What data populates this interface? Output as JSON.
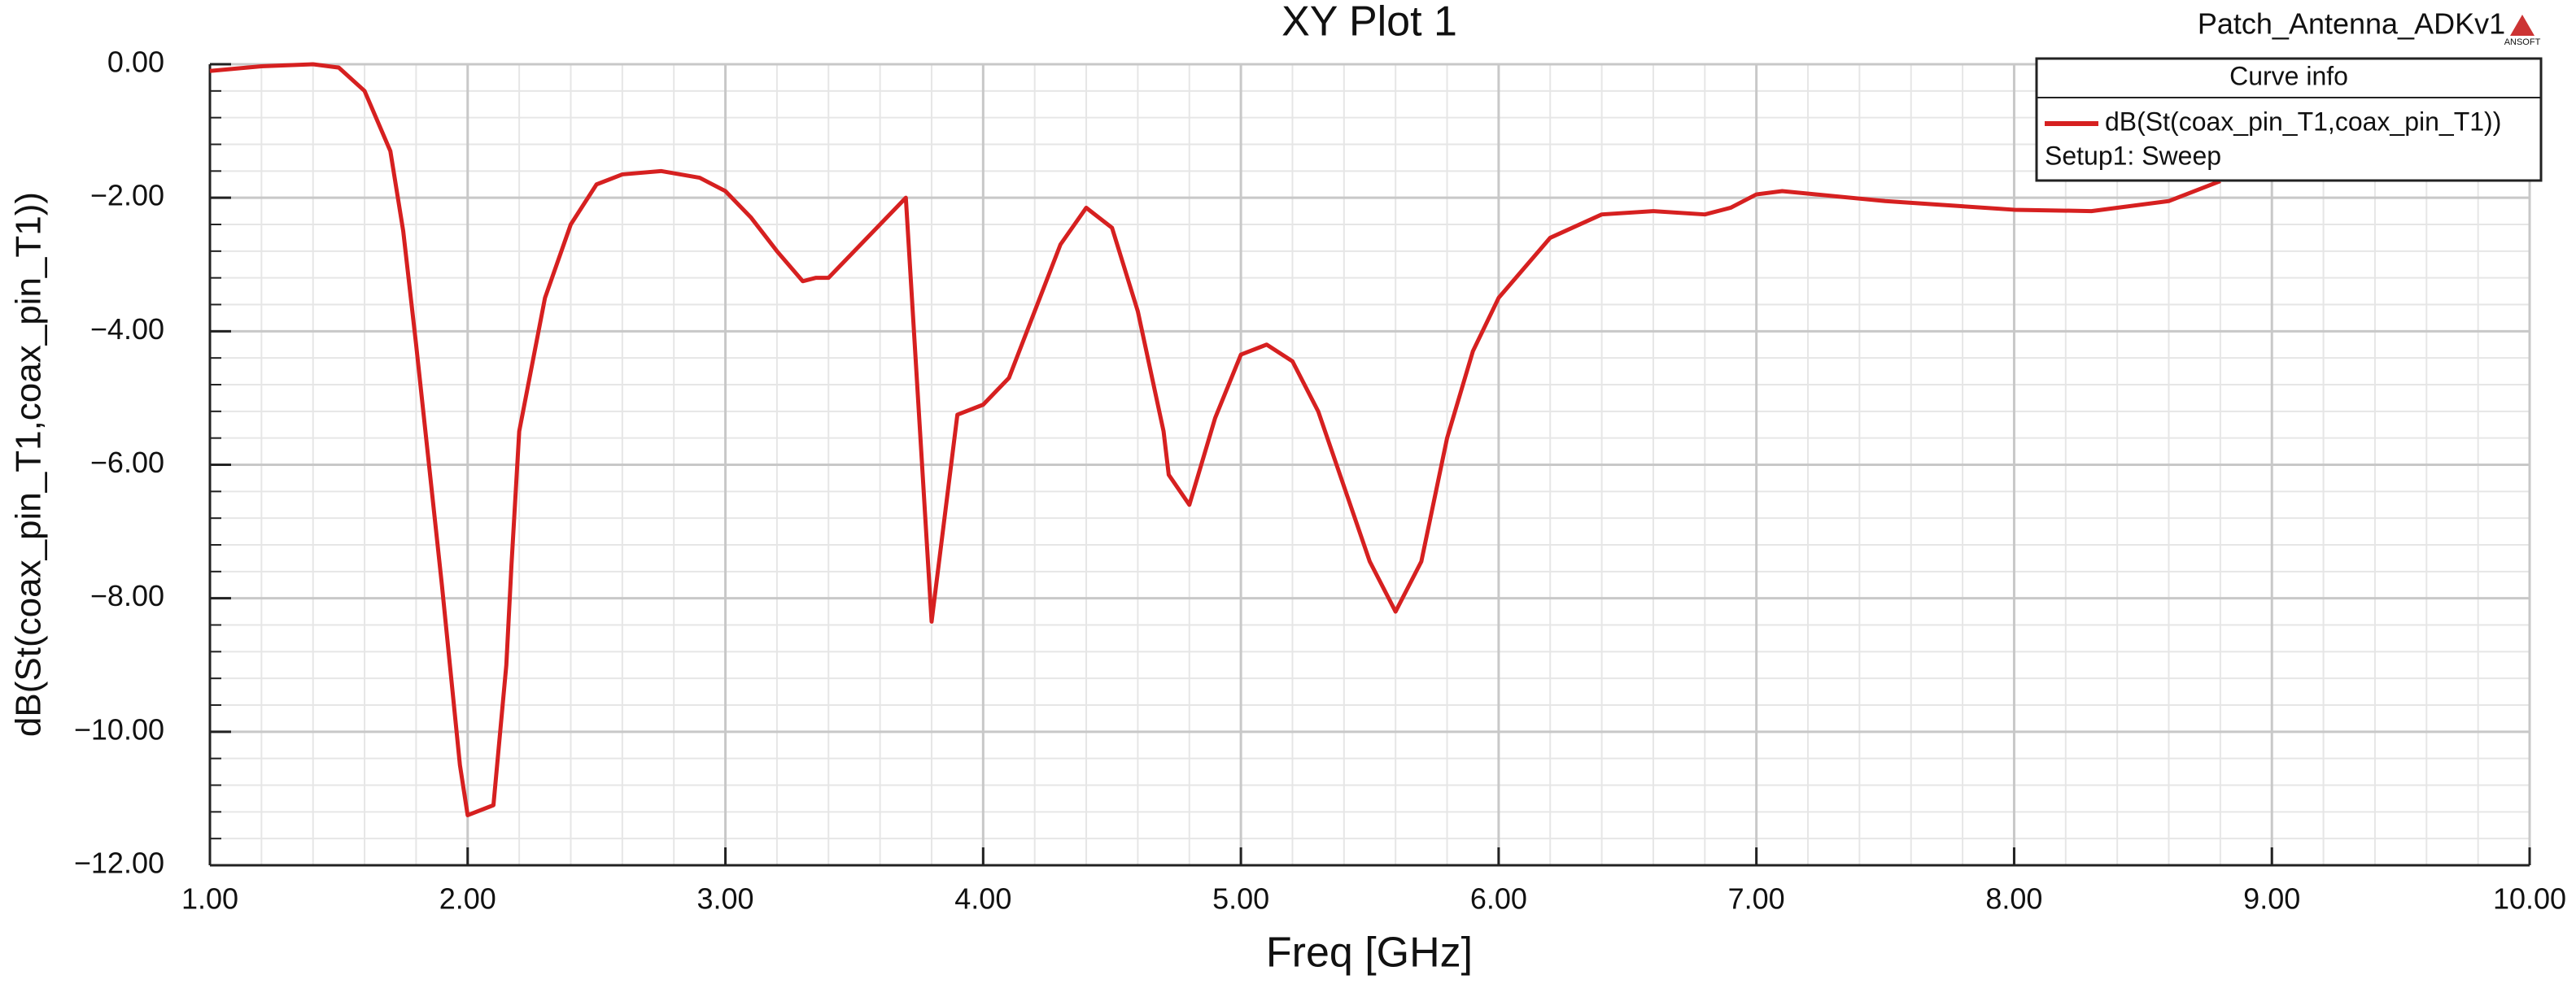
{
  "chart_data": {
    "type": "line",
    "title": "XY Plot 1",
    "project": "Patch_Antenna_ADKv1",
    "logo": "ANSOFT",
    "legend_title": "Curve info",
    "legend_note": "Setup1: Sweep",
    "legend": "top-right",
    "x_label": "Freq [GHz]",
    "y_label": "dB(St(coax_pin_T1,coax_pin_T1))",
    "xlim": [
      1,
      10
    ],
    "ylim": [
      -12,
      0
    ],
    "xticks": [
      {
        "value": 1,
        "label": "1.00"
      },
      {
        "value": 2,
        "label": "2.00"
      },
      {
        "value": 3,
        "label": "3.00"
      },
      {
        "value": 4,
        "label": "4.00"
      },
      {
        "value": 5,
        "label": "5.00"
      },
      {
        "value": 6,
        "label": "6.00"
      },
      {
        "value": 7,
        "label": "7.00"
      },
      {
        "value": 8,
        "label": "8.00"
      },
      {
        "value": 9,
        "label": "9.00"
      },
      {
        "value": 10,
        "label": "10.00"
      }
    ],
    "yticks": [
      {
        "value": 0,
        "label": "0.00"
      },
      {
        "value": -2,
        "label": "−2.00"
      },
      {
        "value": -4,
        "label": "−4.00"
      },
      {
        "value": -6,
        "label": "−6.00"
      },
      {
        "value": -8,
        "label": "−8.00"
      },
      {
        "value": -10,
        "label": "−10.00"
      },
      {
        "value": -12,
        "label": "−12.00"
      }
    ],
    "grid": true,
    "x": [
      1.0,
      1.2,
      1.4,
      1.5,
      1.6,
      1.7,
      1.75,
      1.8,
      1.9,
      1.97,
      2.0,
      2.1,
      2.15,
      2.17,
      2.2,
      2.3,
      2.4,
      2.5,
      2.6,
      2.75,
      2.9,
      3.0,
      3.1,
      3.2,
      3.3,
      3.35,
      3.4,
      3.7,
      3.8,
      3.9,
      4.0,
      4.1,
      4.3,
      4.4,
      4.5,
      4.6,
      4.7,
      4.72,
      4.8,
      4.9,
      5.0,
      5.1,
      5.2,
      5.3,
      5.5,
      5.6,
      5.7,
      5.8,
      5.9,
      6.0,
      6.2,
      6.4,
      6.6,
      6.8,
      6.9,
      7.0,
      7.1,
      7.5,
      8.0,
      8.3,
      8.6,
      8.8
    ],
    "series": [
      {
        "name": "dB(St(coax_pin_T1,coax_pin_T1))",
        "color": "#d62020",
        "values": [
          -0.1,
          -0.03,
          0,
          -0.05,
          -0.4,
          -1.3,
          -2.5,
          -4.2,
          -7.8,
          -10.5,
          -11.25,
          -11.1,
          -9,
          -7.5,
          -5.5,
          -3.5,
          -2.4,
          -1.8,
          -1.65,
          -1.6,
          -1.7,
          -1.9,
          -2.3,
          -2.8,
          -3.25,
          -3.2,
          -3.2,
          -2.0,
          -8.35,
          -5.25,
          -5.1,
          -4.7,
          -2.7,
          -2.15,
          -2.45,
          -3.7,
          -5.5,
          -6.15,
          -6.6,
          -5.3,
          -4.35,
          -4.2,
          -4.45,
          -5.2,
          -7.45,
          -8.2,
          -7.45,
          -5.6,
          -4.3,
          -3.5,
          -2.6,
          -2.25,
          -2.2,
          -2.25,
          -2.15,
          -1.95,
          -1.9,
          -2.05,
          -2.18,
          -2.2,
          -2.05,
          -1.75
        ]
      }
    ]
  }
}
